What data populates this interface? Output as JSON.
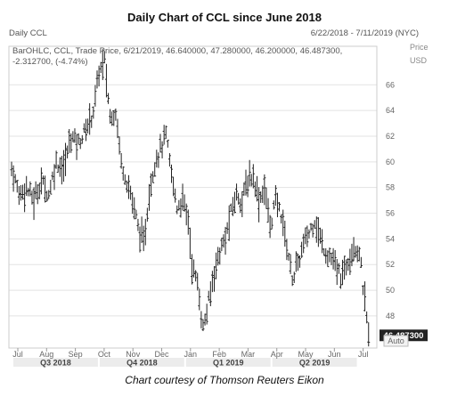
{
  "title": "Daily Chart of CCL since June 2018",
  "caption": "Chart courtesy of Thomson Reuters Eikon",
  "header": {
    "symbol_label": "Daily CCL",
    "date_range": "6/22/2018 - 7/11/2019 (NYC)",
    "legend_line": "BarOHLC, CCL, Trade Price, 6/21/2019, 46.640000, 47.280000, 46.200000, 46.487300,",
    "change": "-2.312700, (-4.74%)",
    "price_tag": "Price",
    "currency_tag": "USD",
    "auto_label": "Auto",
    "last_price_label": "46.487300"
  },
  "colors": {
    "bars": "#222222",
    "change": "#cc0000",
    "last_price_box": "#222222",
    "grid": "#e3e3e3",
    "quarter_band": "#ececec"
  },
  "chart_data": {
    "type": "bar",
    "subtype": "ohlc",
    "title": "Daily Chart of CCL since June 2018",
    "series": [
      {
        "name": "CCL",
        "last": {
          "date": "6/21/2019",
          "open": 46.64,
          "high": 47.28,
          "low": 46.2,
          "close": 46.4873
        }
      }
    ],
    "ylim": [
      45.5,
      69
    ],
    "y_ticks": [
      48,
      50,
      52,
      54,
      56,
      58,
      60,
      62,
      64,
      66
    ],
    "x_month_ticks": [
      "Jul",
      "Aug",
      "Sep",
      "Oct",
      "Nov",
      "Dec",
      "Jan",
      "Feb",
      "Mar",
      "Apr",
      "May",
      "Jun",
      "Jul"
    ],
    "x_quarters": [
      "Q3 2018",
      "Q4 2018",
      "Q1 2019",
      "Q2 2019"
    ],
    "grid": true,
    "price_path": [
      [
        0,
        59.5
      ],
      [
        4,
        57.5
      ],
      [
        8,
        58.0
      ],
      [
        12,
        57.0
      ],
      [
        16,
        58.5
      ],
      [
        20,
        57.5
      ],
      [
        24,
        60.0
      ],
      [
        28,
        59.5
      ],
      [
        32,
        62.0
      ],
      [
        36,
        61.5
      ],
      [
        40,
        62.5
      ],
      [
        44,
        64.0
      ],
      [
        47,
        67.0
      ],
      [
        50,
        67.8
      ],
      [
        53,
        63.5
      ],
      [
        56,
        64.0
      ],
      [
        59,
        60.0
      ],
      [
        62,
        58.5
      ],
      [
        65,
        57.0
      ],
      [
        68,
        55.0
      ],
      [
        71,
        53.5
      ],
      [
        74,
        57.5
      ],
      [
        77,
        60.0
      ],
      [
        80,
        61.0
      ],
      [
        83,
        62.0
      ],
      [
        86,
        59.0
      ],
      [
        89,
        56.5
      ],
      [
        92,
        57.0
      ],
      [
        95,
        55.5
      ],
      [
        97,
        52.0
      ],
      [
        100,
        50.5
      ],
      [
        103,
        47.0
      ],
      [
        106,
        49.0
      ],
      [
        109,
        51.5
      ],
      [
        112,
        53.0
      ],
      [
        115,
        54.0
      ],
      [
        118,
        56.0
      ],
      [
        121,
        57.5
      ],
      [
        124,
        57.0
      ],
      [
        127,
        58.5
      ],
      [
        130,
        59.0
      ],
      [
        133,
        57.0
      ],
      [
        136,
        58.0
      ],
      [
        139,
        55.0
      ],
      [
        142,
        57.0
      ],
      [
        145,
        56.0
      ],
      [
        148,
        53.5
      ],
      [
        151,
        51.0
      ],
      [
        154,
        52.0
      ],
      [
        157,
        53.5
      ],
      [
        160,
        54.5
      ],
      [
        163,
        55.5
      ],
      [
        166,
        54.0
      ],
      [
        169,
        53.0
      ],
      [
        172,
        52.5
      ],
      [
        175,
        51.5
      ],
      [
        178,
        51.0
      ],
      [
        181,
        52.5
      ],
      [
        184,
        53.5
      ],
      [
        187,
        53.0
      ],
      [
        190,
        49.0
      ],
      [
        192,
        46.5
      ]
    ]
  }
}
